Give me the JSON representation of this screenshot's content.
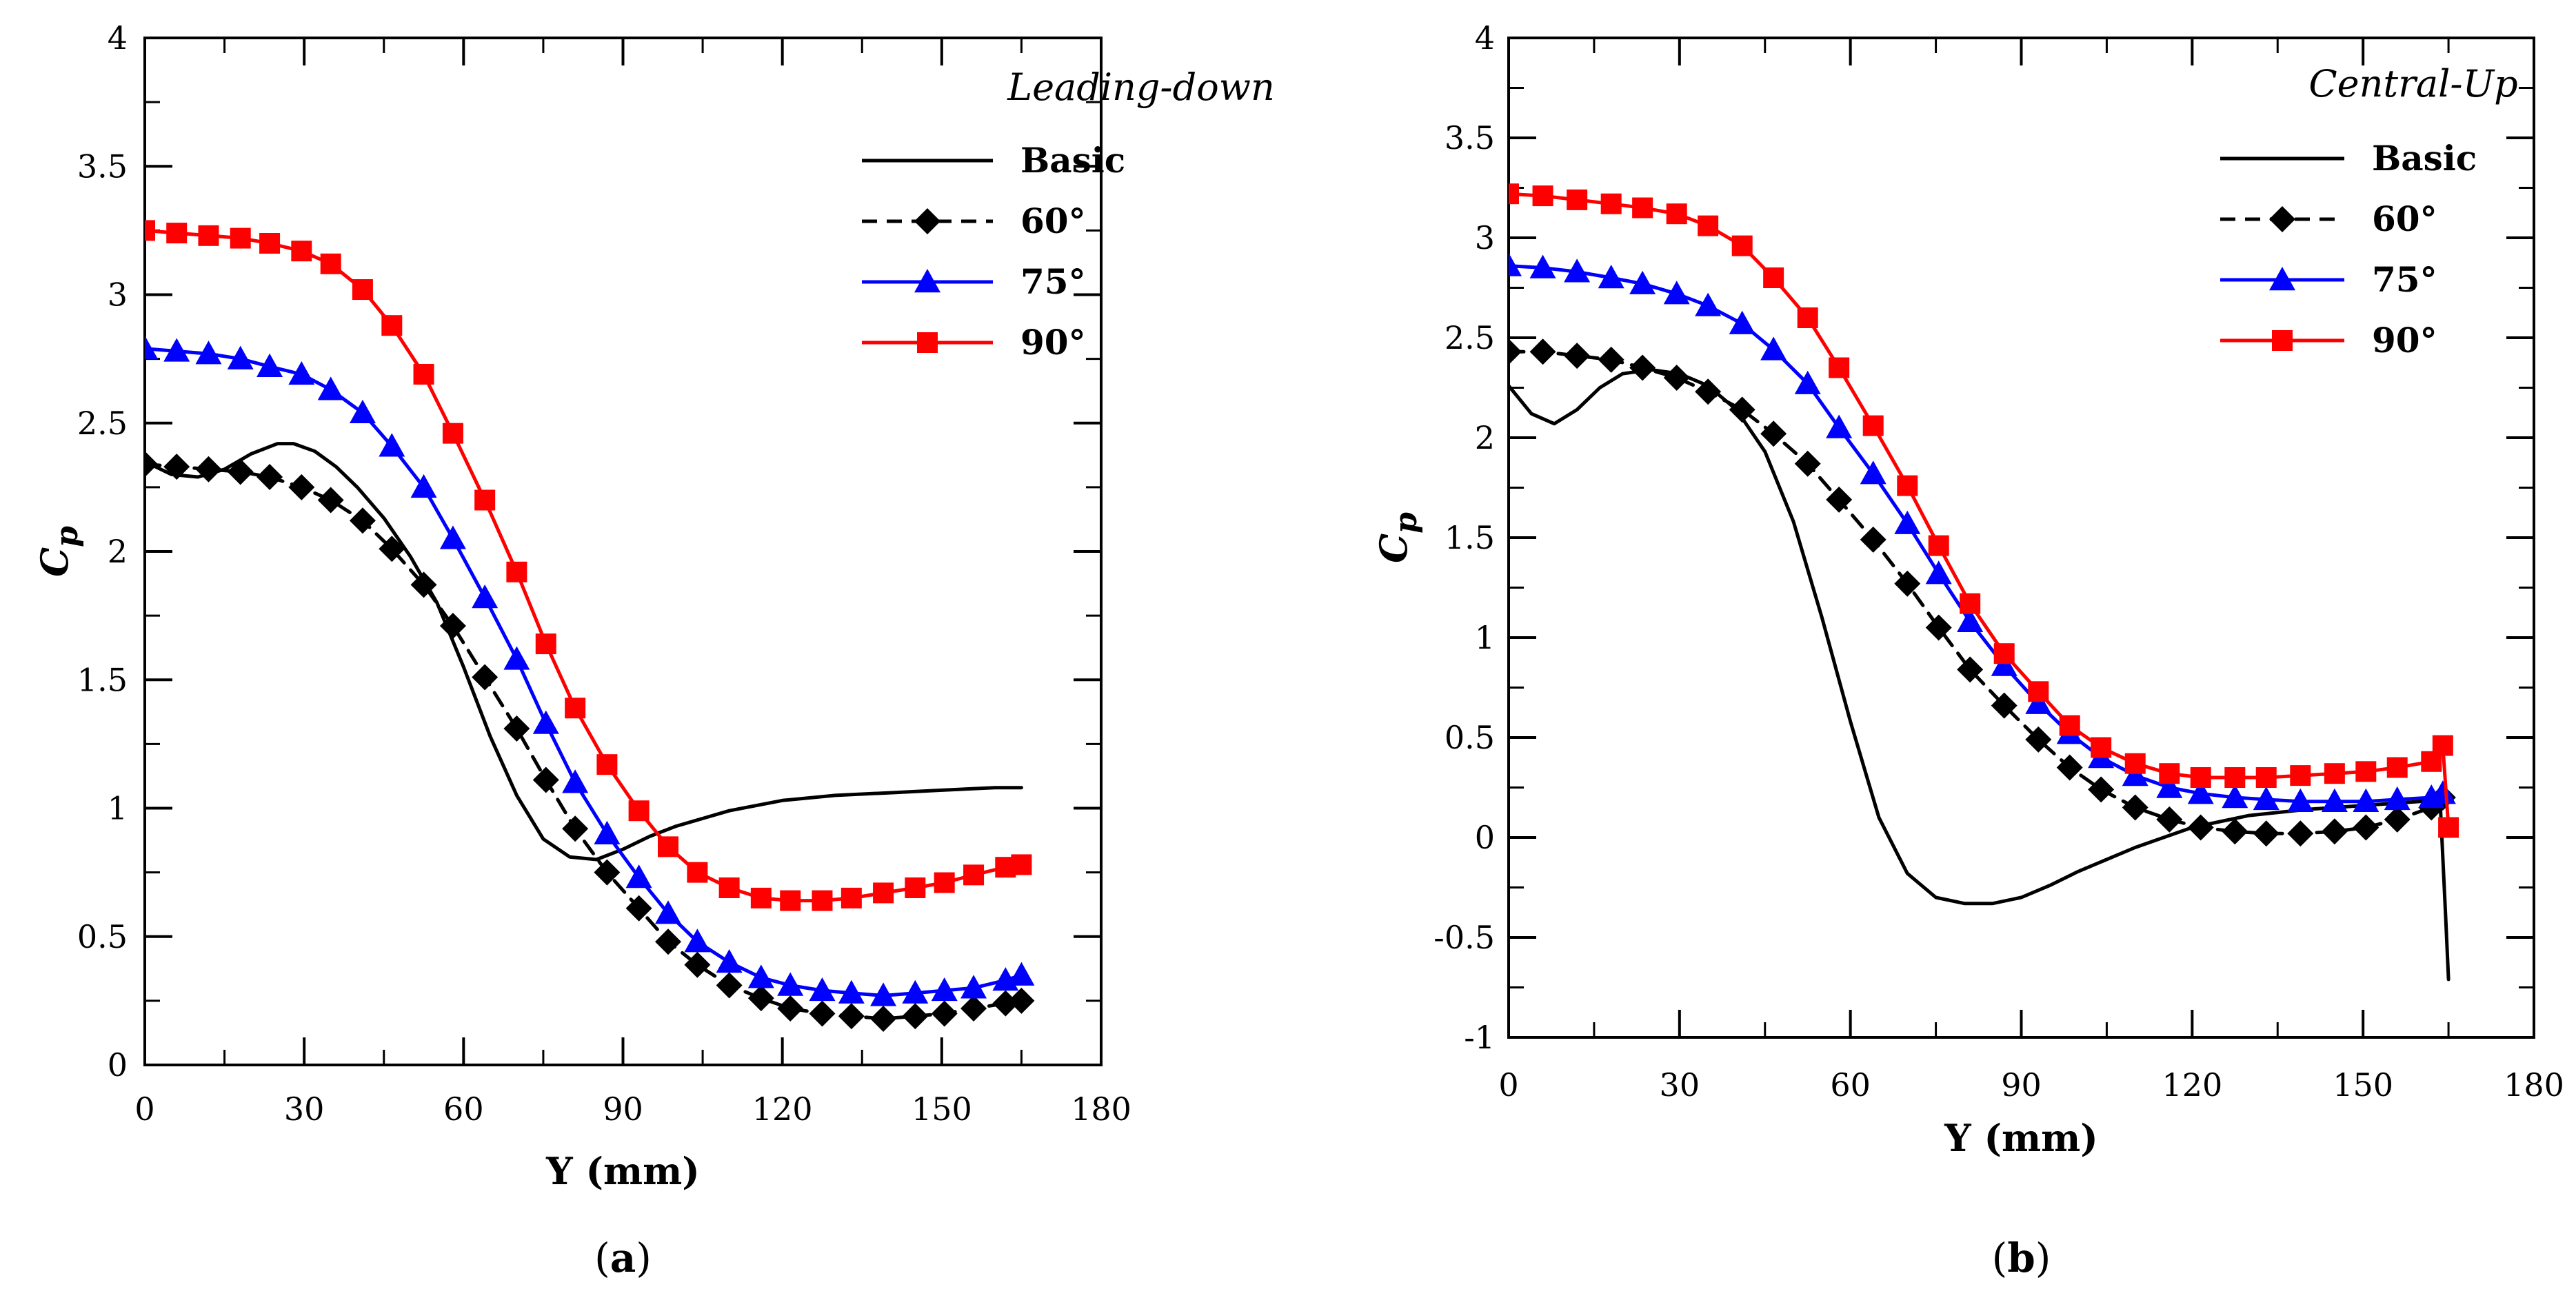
{
  "colors": {
    "basic": "#000000",
    "deg60": "#000000",
    "deg75": "#0000ff",
    "deg90": "#ff0000"
  },
  "chart_data": [
    {
      "type": "line",
      "panel_label": "a",
      "legend_title": "Leading-down",
      "xlabel": "Y (mm)",
      "ylabel_main": "C",
      "ylabel_sub": "p",
      "xlim": [
        0,
        180
      ],
      "ylim": [
        0,
        4
      ],
      "xticks": [
        0,
        30,
        60,
        90,
        120,
        150,
        180
      ],
      "yticks": [
        0,
        0.5,
        1,
        1.5,
        2,
        2.5,
        3,
        3.5,
        4
      ],
      "ytick_labels": [
        "0",
        "0.5",
        "1",
        "1.5",
        "2",
        "2.5",
        "3",
        "3.5",
        "4"
      ],
      "legend_position": "top-right",
      "series": [
        {
          "name": "Basic",
          "key": "basic",
          "marker": "none",
          "dash": "solid",
          "x": [
            0,
            5,
            10,
            15,
            20,
            25,
            28,
            32,
            36,
            40,
            45,
            50,
            55,
            60,
            65,
            70,
            75,
            80,
            85,
            90,
            95,
            100,
            110,
            120,
            130,
            140,
            150,
            160,
            165
          ],
          "y": [
            2.35,
            2.3,
            2.29,
            2.32,
            2.38,
            2.42,
            2.42,
            2.39,
            2.33,
            2.25,
            2.13,
            1.98,
            1.8,
            1.55,
            1.28,
            1.05,
            0.88,
            0.81,
            0.8,
            0.84,
            0.89,
            0.93,
            0.99,
            1.03,
            1.05,
            1.06,
            1.07,
            1.08,
            1.08
          ]
        },
        {
          "name": "60°",
          "key": "deg60",
          "marker": "diamond",
          "dash": "dashed",
          "x": [
            0,
            6,
            12,
            18,
            23.5,
            29.5,
            35,
            41,
            46.5,
            52.5,
            58,
            64,
            70,
            75.5,
            81,
            87,
            93,
            98.5,
            104,
            110,
            116,
            121.5,
            127.5,
            133,
            139,
            145,
            150.5,
            156,
            162,
            165
          ],
          "y": [
            2.34,
            2.33,
            2.32,
            2.31,
            2.29,
            2.25,
            2.2,
            2.12,
            2.01,
            1.87,
            1.71,
            1.51,
            1.31,
            1.11,
            0.92,
            0.75,
            0.61,
            0.48,
            0.39,
            0.31,
            0.26,
            0.22,
            0.2,
            0.19,
            0.18,
            0.19,
            0.2,
            0.22,
            0.24,
            0.25
          ]
        },
        {
          "name": "75°",
          "key": "deg75",
          "marker": "triangle",
          "dash": "solid",
          "x": [
            0,
            6,
            12,
            18,
            23.5,
            29.5,
            35,
            41,
            46.5,
            52.5,
            58,
            64,
            70,
            75.5,
            81,
            87,
            93,
            98.5,
            104,
            110,
            116,
            121.5,
            127.5,
            133,
            139,
            145,
            150.5,
            156,
            162,
            165
          ],
          "y": [
            2.79,
            2.78,
            2.77,
            2.75,
            2.72,
            2.69,
            2.63,
            2.54,
            2.41,
            2.25,
            2.05,
            1.82,
            1.58,
            1.33,
            1.1,
            0.9,
            0.73,
            0.59,
            0.48,
            0.4,
            0.34,
            0.31,
            0.29,
            0.28,
            0.27,
            0.28,
            0.29,
            0.3,
            0.33,
            0.35
          ]
        },
        {
          "name": "90°",
          "key": "deg90",
          "marker": "square",
          "dash": "solid",
          "x": [
            0,
            6,
            12,
            18,
            23.5,
            29.5,
            35,
            41,
            46.5,
            52.5,
            58,
            64,
            70,
            75.5,
            81,
            87,
            93,
            98.5,
            104,
            110,
            116,
            121.5,
            127.5,
            133,
            139,
            145,
            150.5,
            156,
            162,
            165
          ],
          "y": [
            3.25,
            3.24,
            3.23,
            3.22,
            3.2,
            3.17,
            3.12,
            3.02,
            2.88,
            2.69,
            2.46,
            2.2,
            1.92,
            1.64,
            1.39,
            1.17,
            0.99,
            0.85,
            0.75,
            0.69,
            0.65,
            0.64,
            0.64,
            0.65,
            0.67,
            0.69,
            0.71,
            0.74,
            0.77,
            0.78
          ]
        }
      ]
    },
    {
      "type": "line",
      "panel_label": "b",
      "legend_title": "Central-Up",
      "xlabel": "Y (mm)",
      "ylabel_main": "C",
      "ylabel_sub": "p",
      "xlim": [
        0,
        180
      ],
      "ylim": [
        -1,
        4
      ],
      "xticks": [
        0,
        30,
        60,
        90,
        120,
        150,
        180
      ],
      "yticks": [
        -1,
        -0.5,
        0,
        0.5,
        1,
        1.5,
        2,
        2.5,
        3,
        3.5,
        4
      ],
      "ytick_labels": [
        "-1",
        "-0.5",
        "0",
        "0.5",
        "1",
        "1.5",
        "2",
        "2.5",
        "3",
        "3.5",
        "4"
      ],
      "legend_position": "top-right",
      "series": [
        {
          "name": "Basic",
          "key": "basic",
          "marker": "none",
          "dash": "solid",
          "x": [
            0,
            4,
            8,
            12,
            16,
            20,
            25,
            30,
            35,
            40,
            45,
            50,
            55,
            60,
            65,
            70,
            75,
            80,
            85,
            90,
            95,
            100,
            110,
            120,
            130,
            140,
            150,
            160,
            163.5,
            164.5,
            165
          ],
          "y": [
            2.26,
            2.12,
            2.07,
            2.14,
            2.25,
            2.32,
            2.34,
            2.32,
            2.26,
            2.14,
            1.93,
            1.58,
            1.1,
            0.58,
            0.1,
            -0.18,
            -0.3,
            -0.33,
            -0.33,
            -0.3,
            -0.24,
            -0.17,
            -0.05,
            0.05,
            0.11,
            0.14,
            0.16,
            0.18,
            0.2,
            -0.4,
            -0.71
          ]
        },
        {
          "name": "60°",
          "key": "deg60",
          "marker": "diamond",
          "dash": "dashed",
          "x": [
            0,
            6,
            12,
            18,
            23.5,
            29.5,
            35,
            41,
            46.5,
            52.5,
            58,
            64,
            70,
            75.5,
            81,
            87,
            93,
            98.5,
            104,
            110,
            116,
            121.5,
            127.5,
            133,
            139,
            145,
            150.5,
            156,
            162,
            164
          ],
          "y": [
            2.43,
            2.43,
            2.41,
            2.39,
            2.35,
            2.3,
            2.23,
            2.14,
            2.02,
            1.87,
            1.69,
            1.49,
            1.27,
            1.05,
            0.84,
            0.66,
            0.49,
            0.35,
            0.24,
            0.15,
            0.09,
            0.05,
            0.03,
            0.02,
            0.02,
            0.03,
            0.05,
            0.09,
            0.15,
            0.2
          ]
        },
        {
          "name": "75°",
          "key": "deg75",
          "marker": "triangle",
          "dash": "solid",
          "x": [
            0,
            6,
            12,
            18,
            23.5,
            29.5,
            35,
            41,
            46.5,
            52.5,
            58,
            64,
            70,
            75.5,
            81,
            87,
            93,
            98.5,
            104,
            110,
            116,
            121.5,
            127.5,
            133,
            139,
            145,
            150.5,
            156,
            162,
            164
          ],
          "y": [
            2.86,
            2.85,
            2.83,
            2.8,
            2.77,
            2.72,
            2.66,
            2.57,
            2.44,
            2.27,
            2.05,
            1.82,
            1.57,
            1.32,
            1.08,
            0.86,
            0.67,
            0.52,
            0.4,
            0.31,
            0.25,
            0.22,
            0.2,
            0.19,
            0.18,
            0.18,
            0.18,
            0.19,
            0.2,
            0.22
          ]
        },
        {
          "name": "90°",
          "key": "deg90",
          "marker": "square",
          "dash": "solid",
          "x": [
            0,
            6,
            12,
            18,
            23.5,
            29.5,
            35,
            41,
            46.5,
            52.5,
            58,
            64,
            70,
            75.5,
            81,
            87,
            93,
            98.5,
            104,
            110,
            116,
            121.5,
            127.5,
            133,
            139,
            145,
            150.5,
            156,
            162,
            164,
            165
          ],
          "y": [
            3.22,
            3.21,
            3.19,
            3.17,
            3.15,
            3.12,
            3.06,
            2.96,
            2.8,
            2.6,
            2.35,
            2.06,
            1.76,
            1.46,
            1.17,
            0.92,
            0.73,
            0.56,
            0.45,
            0.37,
            0.32,
            0.3,
            0.3,
            0.3,
            0.31,
            0.32,
            0.33,
            0.35,
            0.38,
            0.46,
            0.05
          ]
        }
      ]
    }
  ]
}
